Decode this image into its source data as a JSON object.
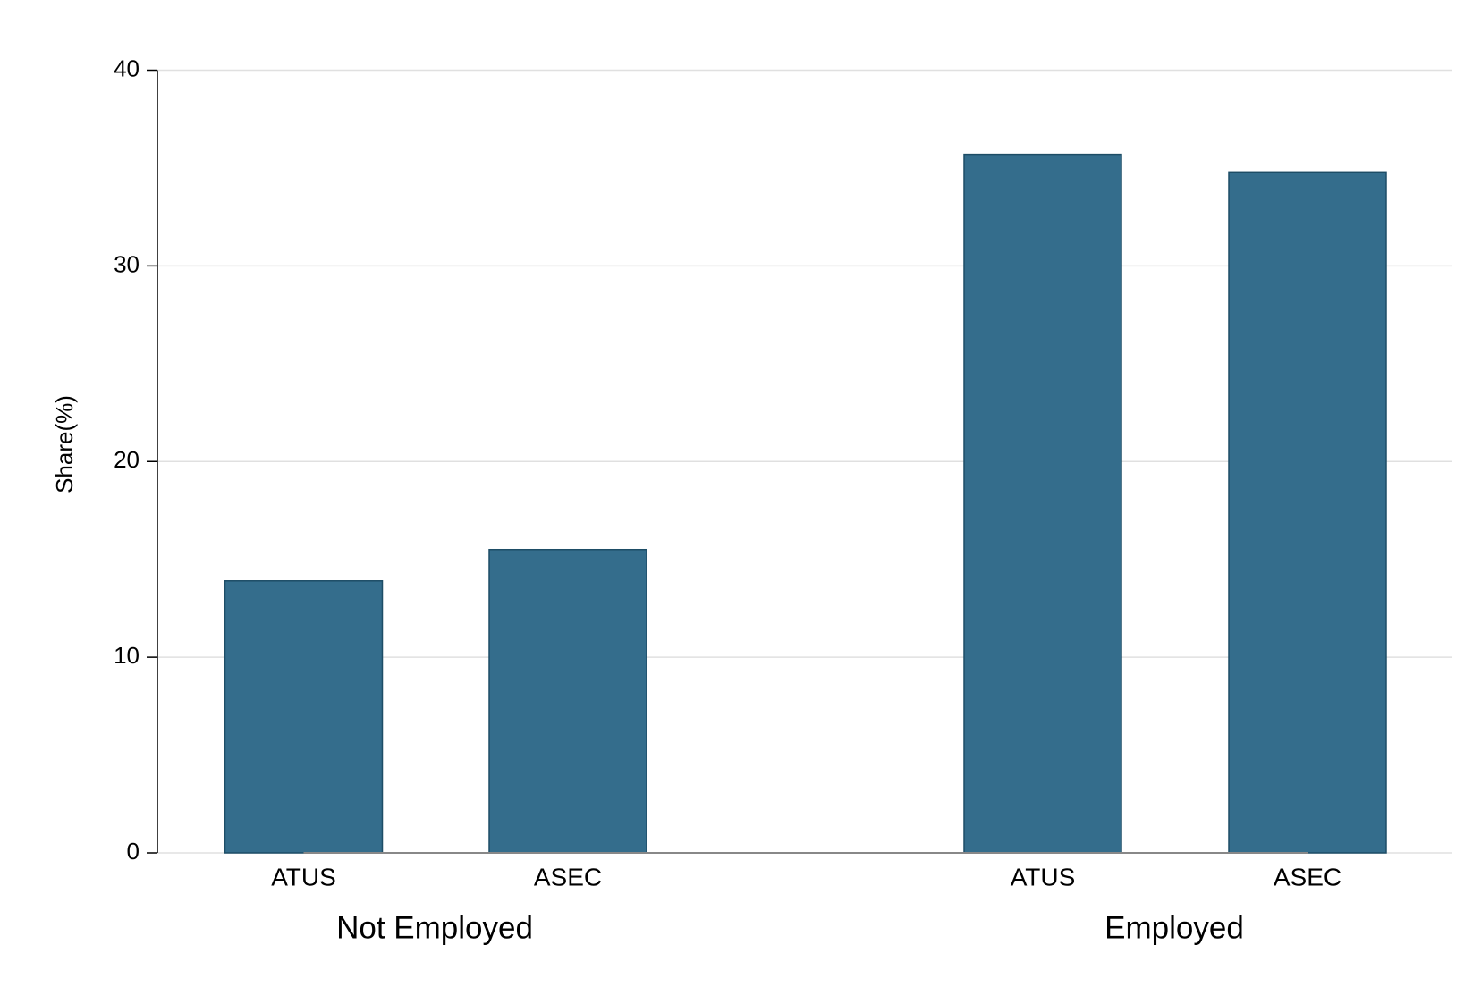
{
  "chart_data": {
    "type": "bar",
    "ylabel": "Share(%)",
    "groups": [
      "Not Employed",
      "Employed"
    ],
    "categories": [
      "ATUS",
      "ASEC",
      "ATUS",
      "ASEC"
    ],
    "values": [
      13.9,
      15.5,
      35.7,
      34.8
    ],
    "color": "#346d8c",
    "ylim": [
      0,
      40
    ],
    "yticks": [
      0,
      10,
      20,
      30,
      40
    ],
    "grid": true
  }
}
